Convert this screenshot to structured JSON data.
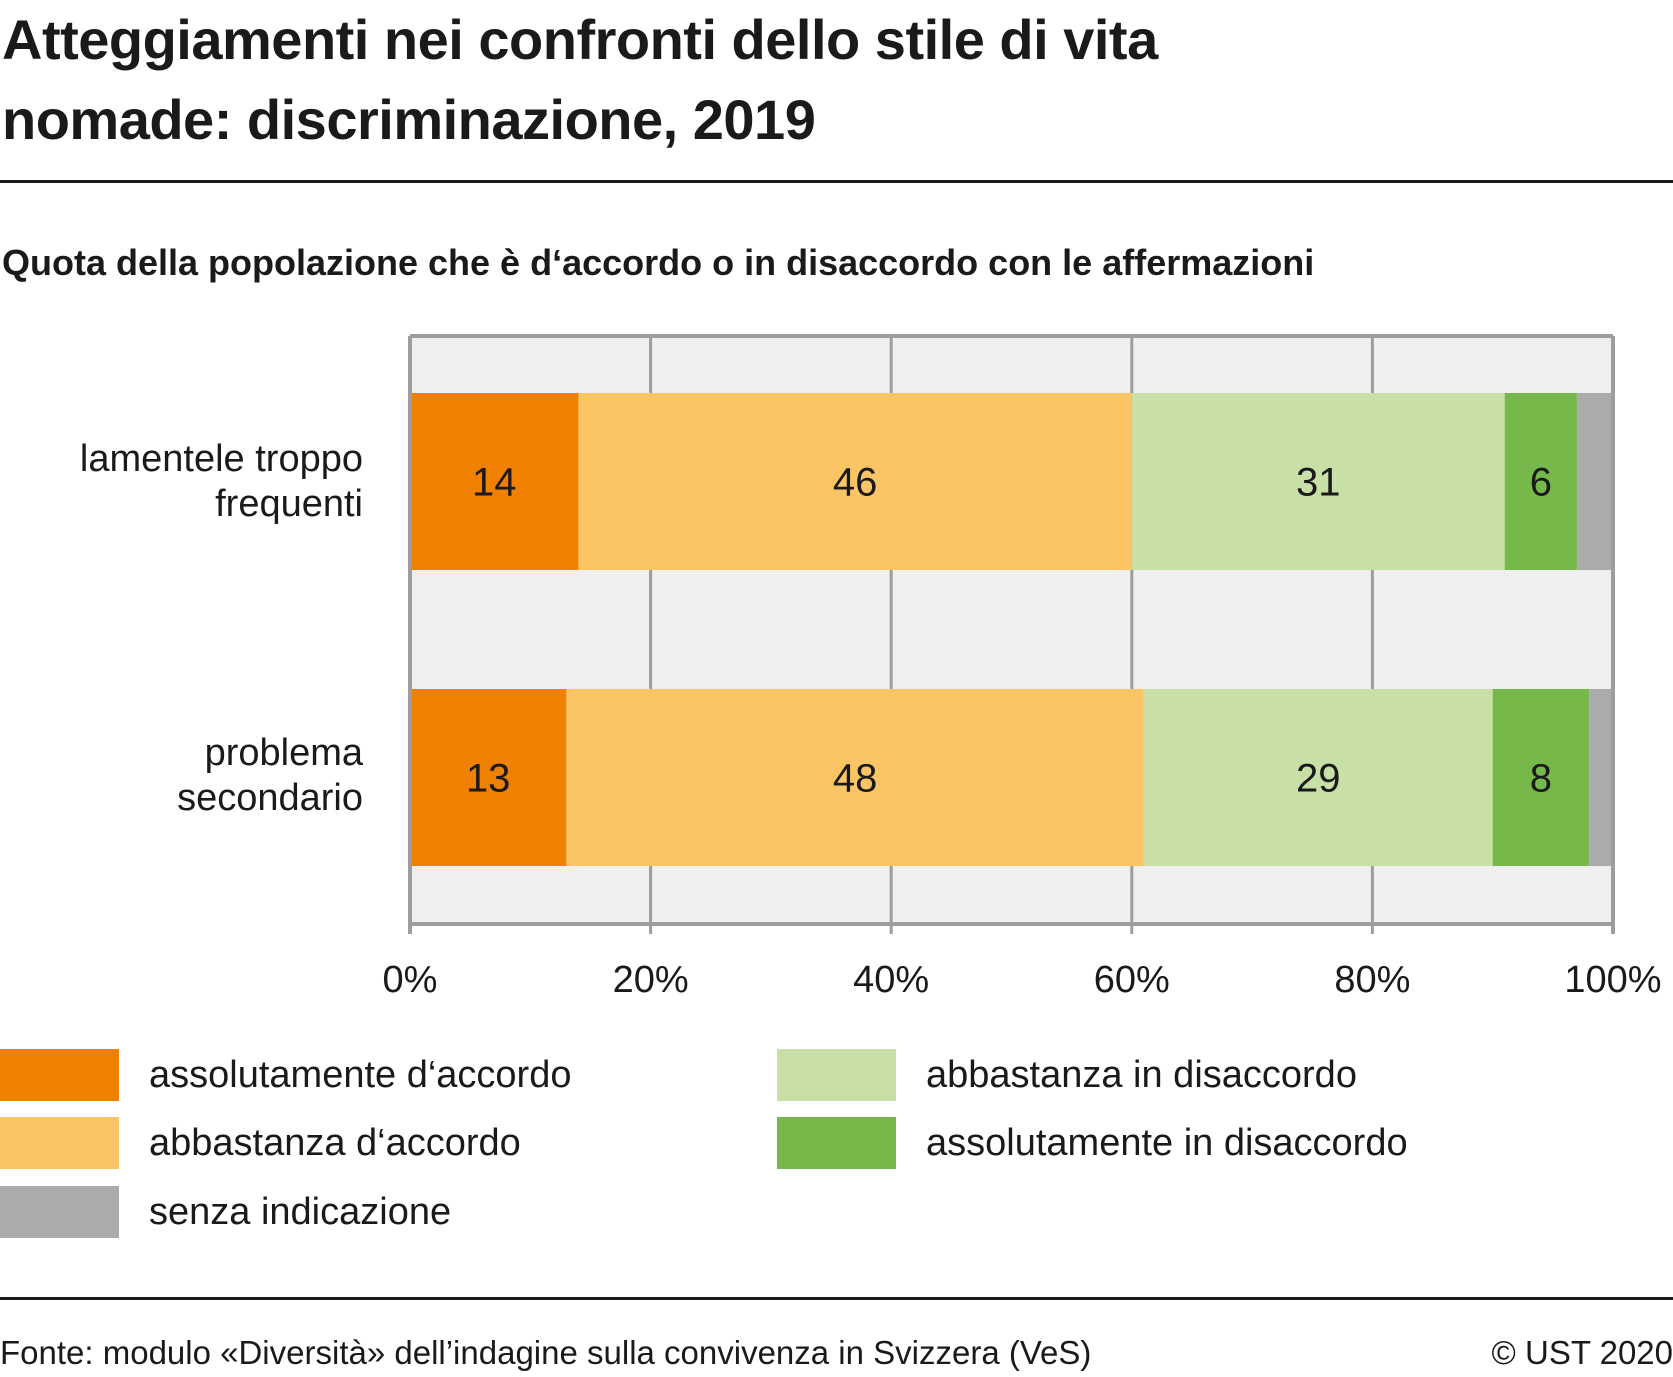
{
  "chart_data": {
    "type": "bar",
    "orientation": "horizontal",
    "stacked": true,
    "title": "Atteggiamenti nei confronti dello stile di vita nomade: discriminazione, 2019",
    "subtitle": "Quota della popolazione che è d‘accordo o in disaccordo con le affermazioni",
    "categories": [
      "lamentele troppo frequenti",
      "problema secondario"
    ],
    "category_lines": [
      [
        "lamentele troppo",
        "frequenti"
      ],
      [
        "problema",
        "secondario"
      ]
    ],
    "series": [
      {
        "name": "assolutamente d‘accordo",
        "color": "#f08000",
        "values": [
          14,
          13
        ],
        "labels": [
          "14",
          "13"
        ]
      },
      {
        "name": "abbastanza d‘accordo",
        "color": "#fbc566",
        "values": [
          46,
          48
        ],
        "labels": [
          "46",
          "48"
        ]
      },
      {
        "name": "abbastanza in disaccordo",
        "color": "#c8dfa6",
        "values": [
          31,
          29
        ],
        "labels": [
          "31",
          "29"
        ]
      },
      {
        "name": "assolutamente in disaccordo",
        "color": "#76b84a",
        "values": [
          6,
          8
        ],
        "labels": [
          "6",
          "8"
        ]
      },
      {
        "name": "senza indicazione",
        "color": "#aaabaa",
        "values": [
          3,
          2
        ],
        "labels": [
          "",
          ""
        ]
      }
    ],
    "xlim": [
      0,
      100
    ],
    "xticks": [
      0,
      20,
      40,
      60,
      80,
      100
    ],
    "xtick_labels": [
      "0%",
      "20%",
      "40%",
      "60%",
      "80%",
      "100%"
    ],
    "xlabel": "",
    "ylabel": "",
    "grid": true,
    "legend_position": "bottom",
    "legend_order": [
      0,
      2,
      1,
      3,
      4
    ]
  },
  "legend": [
    {
      "label": "assolutamente d‘accordo",
      "color": "#f08000"
    },
    {
      "label": "abbastanza in disaccordo",
      "color": "#c8dfa6"
    },
    {
      "label": "abbastanza d‘accordo",
      "color": "#fbc566"
    },
    {
      "label": "assolutamente in disaccordo",
      "color": "#76b84a"
    },
    {
      "label": "senza indicazione",
      "color": "#aaabaa"
    }
  ],
  "header": {
    "title_line1": "Atteggiamenti nei confronti dello stile di vita",
    "title_line2": "nomade: discriminazione, 2019",
    "subtitle": "Quota della popolazione che è d‘accordo o in disaccordo con le affermazioni"
  },
  "footer": {
    "source": "Fonte: modulo «Diversità» dell’indagine sulla convivenza in Svizzera (VeS)",
    "copyright": "© UST 2020"
  },
  "colors": {
    "plot_background": "#efefef",
    "gridline": "#9d9d9d",
    "text": "#1a1a1a"
  }
}
